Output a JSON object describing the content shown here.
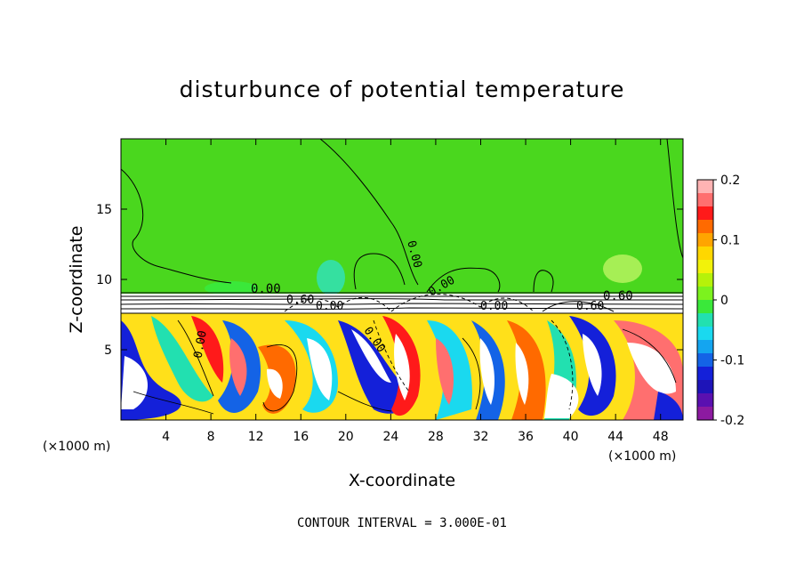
{
  "chart_data": {
    "type": "heatmap",
    "title": "disturbunce of potential temperature",
    "xlabel": "X-coordinate",
    "ylabel": "Z-coordinate",
    "x_unit": "(×1000 m)",
    "z_unit": "(×1000 m)",
    "xlim": [
      0,
      50
    ],
    "zlim": [
      0,
      20
    ],
    "x_ticks": [
      4,
      8,
      12,
      16,
      20,
      24,
      28,
      32,
      36,
      40,
      44,
      48
    ],
    "z_ticks": [
      5,
      10,
      15
    ],
    "colorbar": {
      "range": [
        -0.2,
        0.2
      ],
      "ticks": [
        "0.2",
        "0.1",
        "0",
        "-0.1",
        "-0.2"
      ],
      "colors": [
        "#ffb3b3",
        "#ff6f6f",
        "#ff1a1a",
        "#ff6a00",
        "#ffa500",
        "#ffd700",
        "#f2f20a",
        "#b5f20a",
        "#7cf21e",
        "#3ae83a",
        "#22e0b0",
        "#1ad9ef",
        "#14a5f0",
        "#1463e6",
        "#1420d9",
        "#1e14b8",
        "#5a10b0",
        "#8c1aa0"
      ]
    },
    "contour_labels": [
      "0.00",
      "0.00",
      "0.00",
      "0.00",
      "0.60",
      "0.60",
      "0.60",
      "0.00",
      "0.00",
      "0.00"
    ],
    "contour_interval": "CONTOUR INTERVAL = 3.000E-01"
  }
}
